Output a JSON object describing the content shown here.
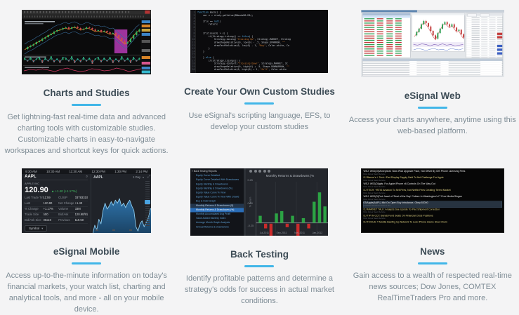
{
  "page": {
    "bg": "#f4f4f5",
    "accent": "#41b6e8",
    "title_color": "#3d4c56",
    "desc_color": "#7f8d96"
  },
  "features": [
    {
      "title": "Charts and Studies",
      "desc": "Get lightning-fast real-time data and advanced charting tools with customizable studies. Customizable charts in easy-to-navigate workspaces and shortcut keys for quick actions."
    },
    {
      "title": "Create Your Own Custom Studies",
      "desc": "Use eSignal's scripting language, EFS, to develop your custom studies"
    },
    {
      "title": "eSignal Web",
      "desc": "Access your charts anywhere, anytime using this web-based platform."
    },
    {
      "title": "eSignal Mobile",
      "desc": "Access up-to-the-minute information on today's financial markets, your watch list, charting and analytical tools, and more - all on your mobile device."
    },
    {
      "title": "Back Testing",
      "desc": "Identify profitable patterns and determine a strategy's odds for success in actual market conditions."
    },
    {
      "title": "News",
      "desc": "Gain access to a wealth of respected real-time news sources; Dow Jones, COMTEX RealTimeTraders Pro and more."
    }
  ],
  "thumbs": {
    "charts": {
      "candles": [
        56,
        53,
        51,
        49,
        46,
        44,
        41,
        39,
        36,
        34,
        31,
        29,
        28,
        26,
        25,
        27,
        25,
        24,
        26,
        28,
        27,
        25,
        26,
        28,
        30,
        29,
        31,
        30,
        32,
        34,
        33,
        36,
        40,
        44,
        48,
        46,
        41,
        36,
        31,
        28
      ],
      "hist": [
        3,
        -2,
        4,
        -3,
        2,
        4,
        -4,
        3,
        -2,
        5,
        -3,
        2,
        -4,
        4,
        3,
        -2,
        5,
        -4,
        2,
        -3,
        4,
        -2,
        3,
        -5,
        2,
        4,
        -3,
        3,
        -2,
        4,
        -4,
        2,
        -3,
        5,
        -2,
        3,
        -4,
        4,
        -2,
        3
      ],
      "wave": [
        87,
        85,
        86,
        84,
        86,
        88,
        85,
        83,
        86,
        88,
        87,
        84,
        85,
        87,
        86,
        83,
        85,
        88,
        86,
        84
      ]
    },
    "code": {
      "lines": [
        {
          "n": "1",
          "segs": [
            [
              "b",
              "function"
            ],
            [
              "w",
              " main() {"
            ]
          ]
        },
        {
          "n": "2",
          "segs": [
            [
              "w",
              "    var x = study.getValue(BBandsMA.MA);"
            ]
          ]
        },
        {
          "n": "3",
          "segs": []
        },
        {
          "n": "4",
          "segs": [
            [
              "w",
              "    if(x == "
            ],
            [
              "b",
              "null"
            ],
            [
              "w",
              ")"
            ]
          ]
        },
        {
          "n": "5",
          "segs": [
            [
              "w",
              "        return;"
            ]
          ]
        },
        {
          "n": "6",
          "segs": []
        },
        {
          "n": "7",
          "segs": []
        },
        {
          "n": "8",
          "segs": [
            [
              "w",
              "    if(close(0) > x) {"
            ]
          ]
        },
        {
          "n": "9",
          "segs": [
            [
              "w",
              "        if(Strategy.isLong() == "
            ],
            [
              "b",
              "false"
            ],
            [
              "w",
              ") {"
            ]
          ]
        },
        {
          "n": "10",
          "segs": [
            [
              "w",
              "            Strategy.doLong("
            ],
            [
              "o",
              "\"Crossing Up\""
            ],
            [
              "w",
              ", Strategy.MARKET, Strateg"
            ]
          ]
        },
        {
          "n": "11",
          "segs": [
            [
              "w",
              "            drawShapeRelative(0, low(0) - .5, Shape.UPARROW, "
            ],
            [
              "o",
              "\"\""
            ]
          ]
        },
        {
          "n": "12",
          "segs": [
            [
              "w",
              "            drawTextRelative(0, low(0) - 1, "
            ],
            [
              "o",
              "\"Buy\""
            ],
            [
              "w",
              ", Color.white, Co"
            ]
          ]
        },
        {
          "n": "13",
          "segs": [
            [
              "w",
              "        }"
            ]
          ]
        },
        {
          "n": "14",
          "segs": [
            [
              "w",
              "    }"
            ]
          ]
        },
        {
          "n": "15",
          "segs": []
        },
        {
          "n": "16",
          "segs": [
            [
              "w",
              "    } "
            ],
            [
              "b",
              "else"
            ],
            [
              "w",
              " {"
            ]
          ]
        },
        {
          "n": "17",
          "segs": [
            [
              "w",
              "        if(Strategy.isLong()) {"
            ]
          ]
        },
        {
          "n": "18",
          "segs": [
            [
              "w",
              "            Strategy.doShort("
            ],
            [
              "o",
              "\"Crossing Down\""
            ],
            [
              "w",
              ", Strategy.MARKET, St"
            ]
          ]
        },
        {
          "n": "19",
          "segs": [
            [
              "w",
              "            drawShapeRelative(0, high(0) + .5, Shape.DOWNARROW, "
            ],
            [
              "o",
              "\"\""
            ]
          ]
        },
        {
          "n": "20",
          "segs": [
            [
              "w",
              "            drawTextRelative(0, high(0) + 1, "
            ],
            [
              "o",
              "\"Sell\""
            ],
            [
              "w",
              ", Color.white"
            ]
          ]
        }
      ]
    },
    "web": {
      "watch": [
        "grgg",
        "rgrr",
        "grrg",
        "rrgg",
        "ggrr",
        "rggr",
        "rrrg",
        "grgr",
        "rggr",
        "rgrr",
        "grgg",
        "rrgr",
        "ggrg",
        "rgrr",
        "grrr",
        "rggg",
        "rgrg",
        "grgr"
      ],
      "candles": [
        34,
        28,
        22,
        14,
        8,
        12,
        18,
        26,
        34,
        40,
        30,
        22,
        14,
        10,
        14,
        18,
        14,
        20,
        26,
        24,
        32,
        38
      ],
      "purple": [
        2,
        3,
        1,
        2,
        4,
        2,
        3,
        1,
        3,
        2,
        4,
        3,
        2
      ],
      "wave": [
        3,
        1,
        2,
        4,
        2,
        1,
        3,
        2,
        4,
        1,
        2,
        3,
        1
      ]
    },
    "mobile": {
      "times": [
        "9:30 AM",
        "10:30 AM",
        "11:30 AM",
        "12:30 PM",
        "1:30 PM",
        "2:14 PM"
      ],
      "symbol": "AAPL",
      "company": "APPLE INC",
      "price": "120.90",
      "change": "+1.40 (+1.17%)",
      "range": "1 Day",
      "footer_label": "Symbol",
      "rows": [
        {
          "l": "Last Trade Time",
          "v": "11:59",
          "l2": "CUSIP",
          "v2": "037833100"
        },
        {
          "l": "Last",
          "v": "120.90",
          "l2": "Net Change",
          "v2": "+1.40"
        },
        {
          "l": "% Change",
          "v": "+1.17%",
          "l2": "Volume",
          "v2": "33M"
        },
        {
          "l": "Trade Size",
          "v": "500",
          "l2": "Bid/Ask",
          "v2": "120.90/91"
        },
        {
          "l": "Bid/Ask Size",
          "v": "96x10",
          "l2": "Previous",
          "v2": "119.50"
        }
      ],
      "area": [
        72,
        60,
        66,
        52,
        58,
        40,
        30,
        38,
        34,
        28,
        33,
        26,
        30,
        24,
        34,
        30,
        36,
        30,
        26,
        34,
        40,
        62,
        68,
        58,
        54,
        62,
        56,
        50,
        38,
        36
      ]
    },
    "backtest": {
      "items": [
        {
          "t": "Back Testing Reports",
          "cls": "root"
        },
        {
          "t": "Equity Curve Detailed"
        },
        {
          "t": "Equity Curve Detailed With Drawdowns"
        },
        {
          "t": "Equity Monthly & Drawdowns"
        },
        {
          "t": "Equity Monthly & Drawdowns (%)"
        },
        {
          "t": "Equity Value Curve % View"
        },
        {
          "t": "Equity Value Curve % View With Drawd"
        },
        {
          "t": "Buy & Hold Graph"
        },
        {
          "t": "Monthly Returns & Drawdowns ($)",
          "cls": "presel"
        },
        {
          "t": "Monthly Returns & Drawdowns (%)",
          "cls": "sel"
        },
        {
          "t": "Monthly Accumulated Avg Profit"
        },
        {
          "t": "Value Added Monthly Index"
        },
        {
          "t": "Average Month Graph Analysis"
        },
        {
          "t": "Annual Returns & Drawdowns"
        }
      ],
      "chart_title": "Monthly Returns & Drawdowns (%",
      "ylabel": "% Return",
      "ylabels": [
        "0.25",
        "0.00",
        "-0.25"
      ],
      "xlabels": [
        "Jul-2011",
        "Sep-2011",
        "Nov-2011",
        "Jan-2012"
      ],
      "bars": [
        6,
        -4,
        -20,
        8,
        10,
        -3,
        6,
        -14,
        4,
        -4,
        18,
        26,
        14,
        -16
      ]
    },
    "news": {
      "items": [
        {
          "h": "WSJ: WSJ(D)Moneybeat: Slow iPad Upgrade Pace, Not Offset By iOS Phone Licensing Fees",
          "m": "Dow Jones News Service"
        },
        {
          "h": "DJ Barron's + Tech: iPad Display Supply Said To Not Challenge For Apple",
          "m": "Dow Jones News Service",
          "cls": "yellow"
        },
        {
          "h": "WSJ: WSJ(D)igits: For Apple iPhone v6 Controls On The Way Out",
          "m": "Dow Jones News Service"
        },
        {
          "h": "DJ TECH: +BTIG Amazon To Sell Fires, Not Netflix Fees Creating Tiered Market",
          "m": "Dow Jones News Service",
          "cls": "yellow"
        },
        {
          "h": "WSJ: WSJ(D)Fed Jewel of 'Deal of the Day' Culture In Washington's IT Free Media Slogan",
          "m": "Dow Jones News Service"
        },
        {
          "h": "03/Apple(AAPL) Mkt On Open Buy Imbalance, Obey 82000",
          "m": "COMTEX RealTimeTraders Pro",
          "cls": "hl"
        },
        {
          "h": "DJ MARKET TALK: Analysts See Upside To iPad Shipment Correction",
          "m": "Dow Jones News Service",
          "cls": "yellow"
        },
        {
          "h": "DJ TIP IN CCT: Bonds Fund Seats On Financial Crisis Positions",
          "m": "Dow Jones News Service",
          "cls": "yellow"
        },
        {
          "h": "DJ FOCUS: T-Mobile Beefing Up Network To Lure iPhone Users; Slow Churn",
          "m": "",
          "cls": "yellow"
        }
      ]
    }
  }
}
